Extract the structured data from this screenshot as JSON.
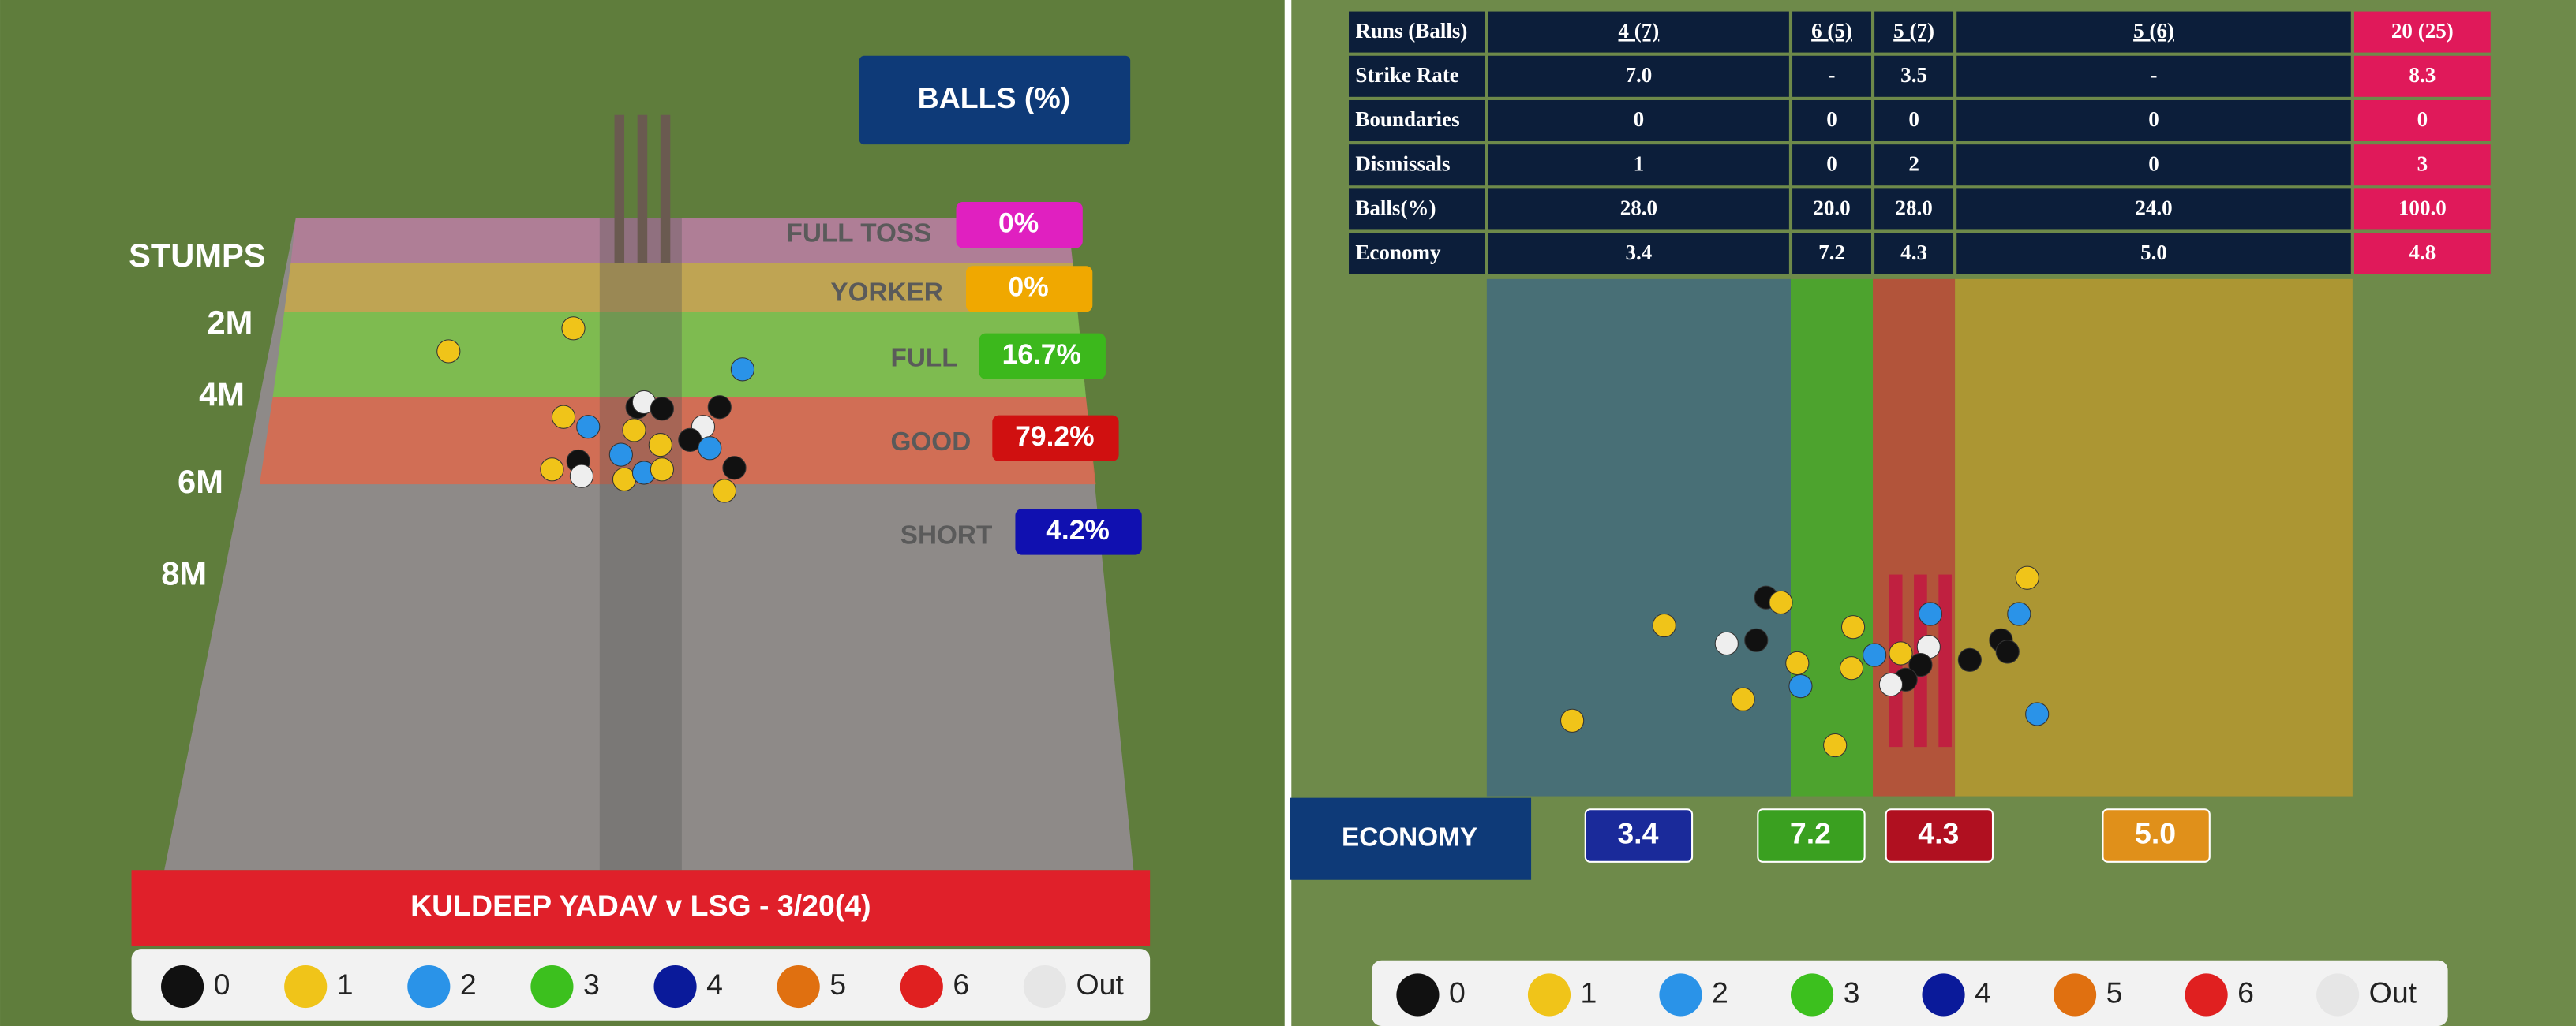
{
  "left_panel": {
    "title": "BALLS (%)",
    "length_labels": [
      "STUMPS",
      "2M",
      "4M",
      "6M",
      "8M"
    ],
    "zones": [
      {
        "name": "FULL TOSS",
        "pct": "0%"
      },
      {
        "name": "YORKER",
        "pct": "0%"
      },
      {
        "name": "FULL",
        "pct": "16.7%"
      },
      {
        "name": "GOOD",
        "pct": "79.2%"
      },
      {
        "name": "SHORT",
        "pct": "4.2%"
      }
    ],
    "banner": "KULDEEP YADAV v LSG - 3/20(4)",
    "legend": [
      "0",
      "1",
      "2",
      "3",
      "4",
      "5",
      "6",
      "Out"
    ]
  },
  "right_panel": {
    "table": {
      "rows": [
        [
          "Runs (Balls)",
          "4 (7)",
          "6 (5)",
          "5 (7)",
          "5 (6)",
          "20 (25)"
        ],
        [
          "Strike Rate",
          "7.0",
          "-",
          "3.5",
          "-",
          "8.3"
        ],
        [
          "Boundaries",
          "0",
          "0",
          "0",
          "0",
          "0"
        ],
        [
          "Dismissals",
          "1",
          "0",
          "2",
          "0",
          "3"
        ],
        [
          "Balls(%)",
          "28.0",
          "20.0",
          "28.0",
          "24.0",
          "100.0"
        ],
        [
          "Economy",
          "3.4",
          "7.2",
          "4.3",
          "5.0",
          "4.8"
        ]
      ]
    },
    "economy_label": "ECONOMY",
    "economy_values": [
      "3.4",
      "7.2",
      "4.3",
      "5.0"
    ],
    "legend": [
      "0",
      "1",
      "2",
      "3",
      "4",
      "5",
      "6",
      "Out"
    ]
  }
}
